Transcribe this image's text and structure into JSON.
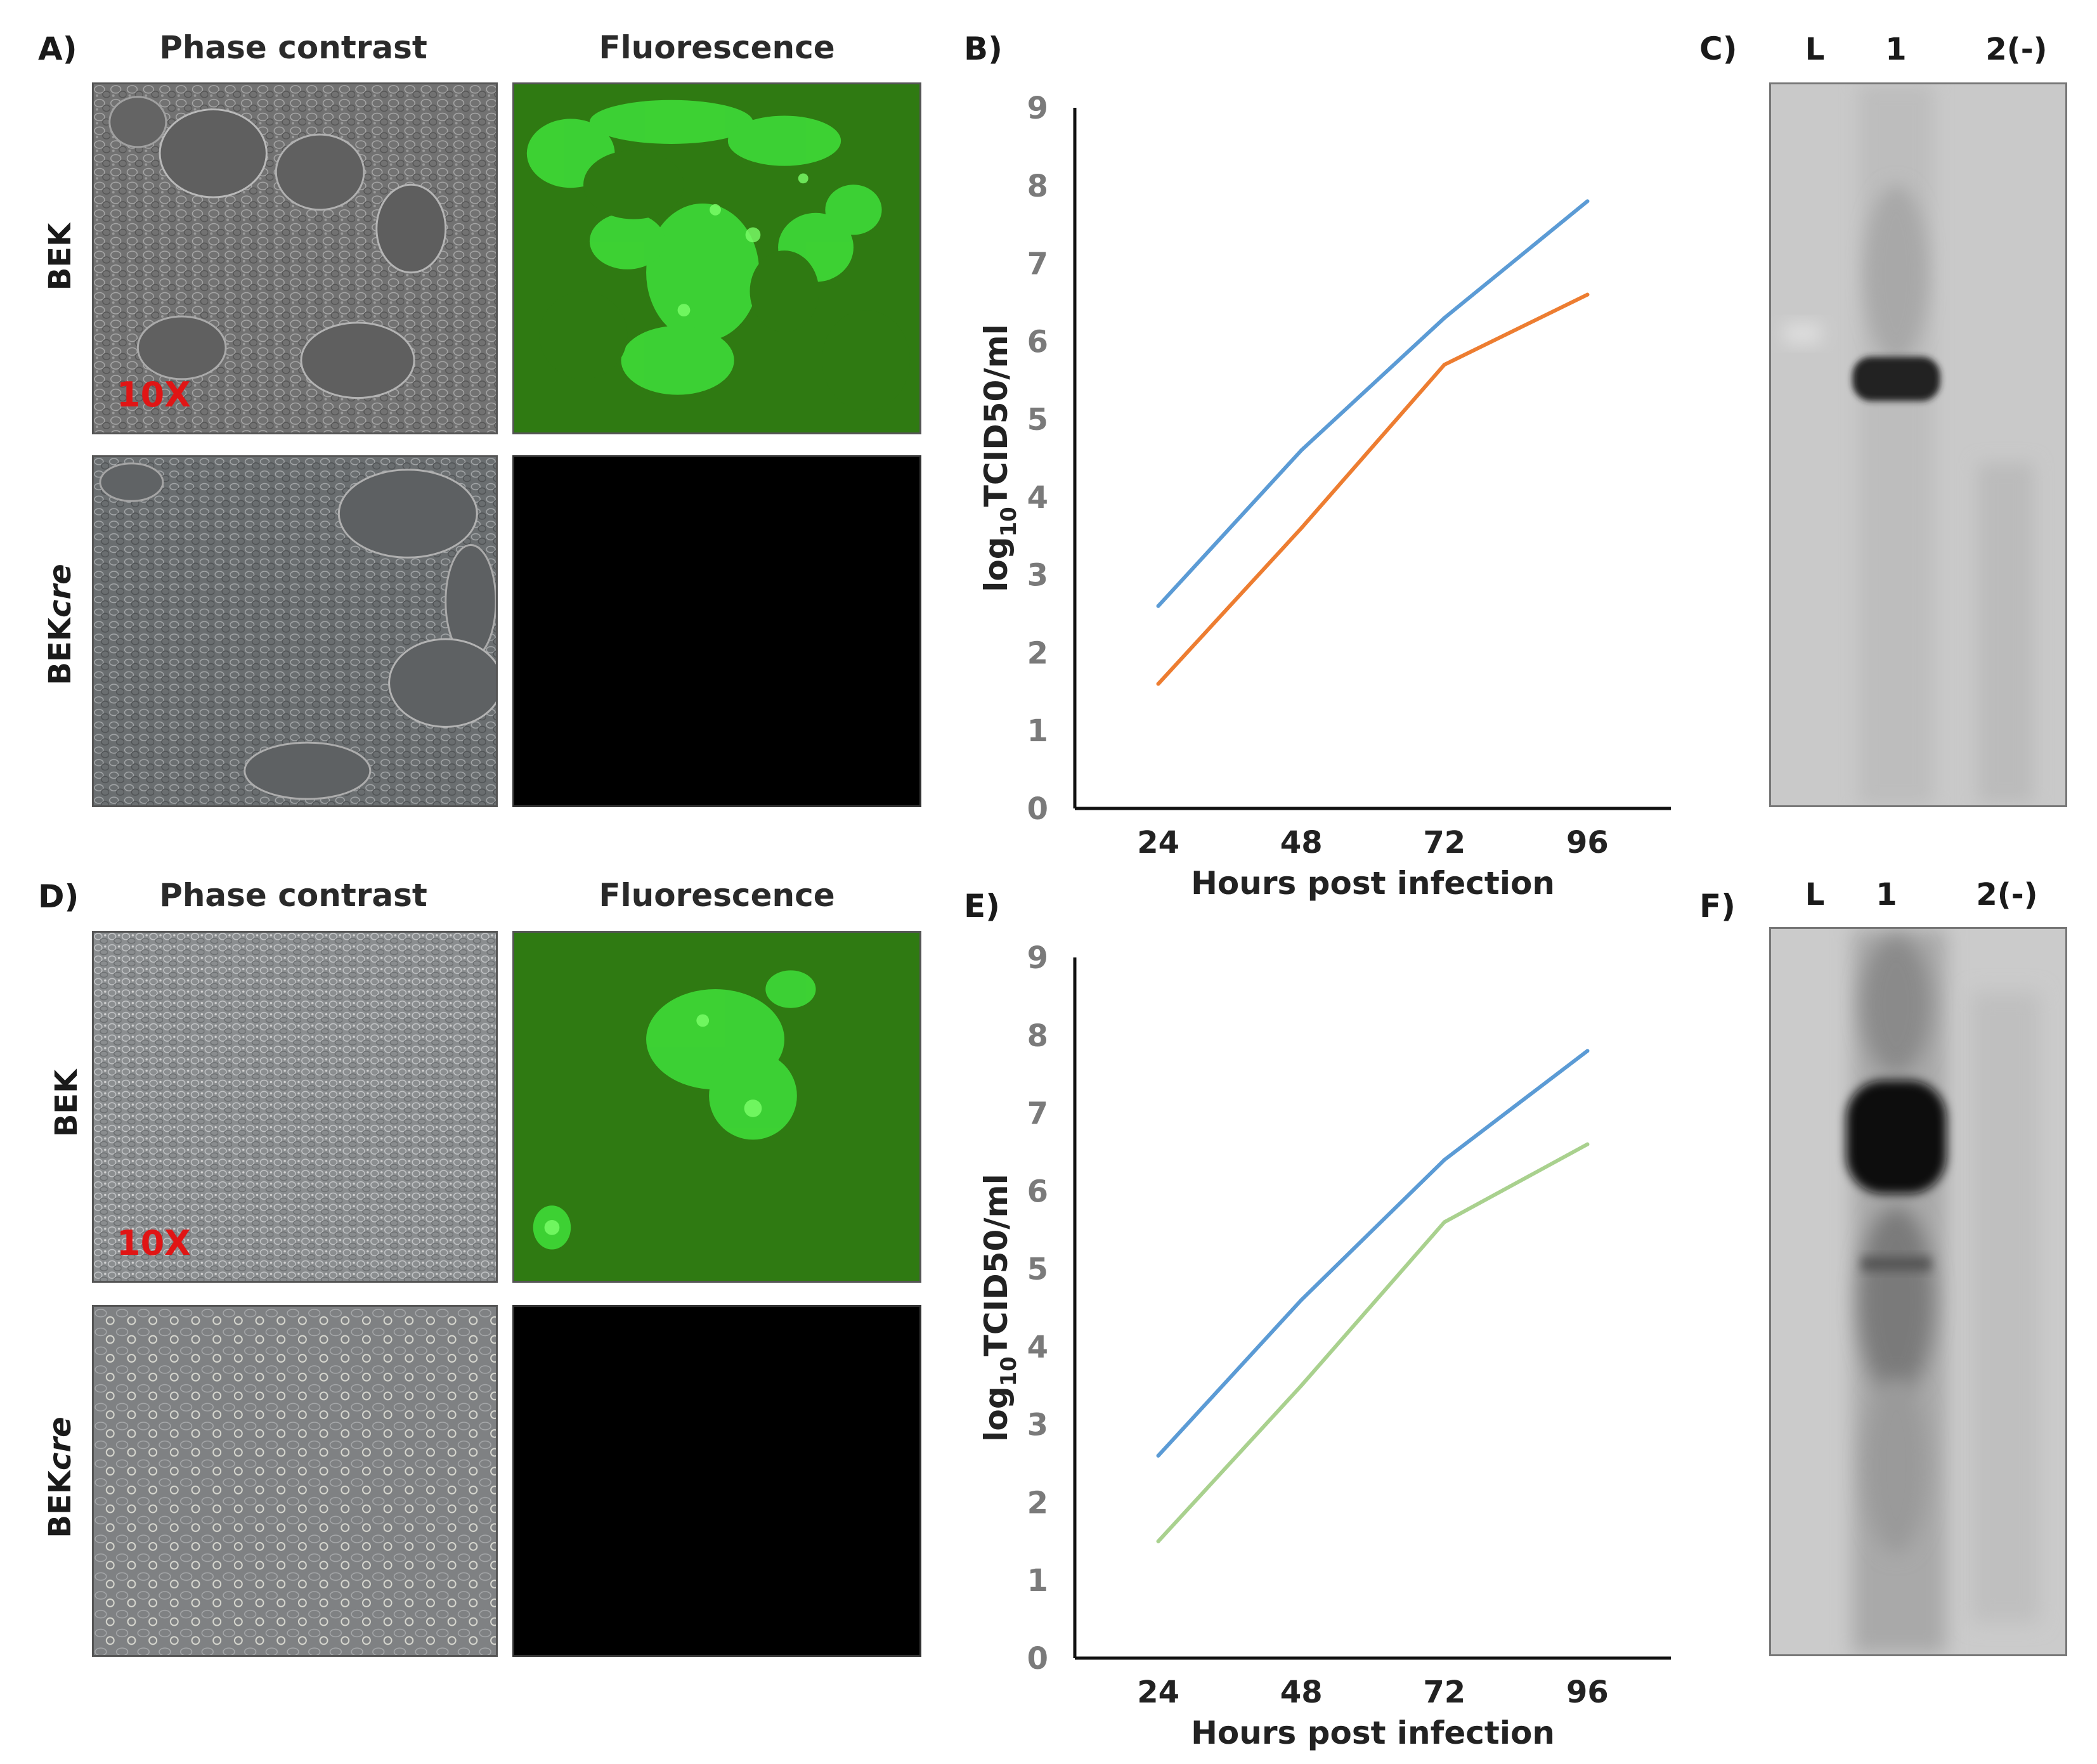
{
  "panels": {
    "A": "A)",
    "B": "B)",
    "C": "C)",
    "D": "D)",
    "E": "E)",
    "F": "F)"
  },
  "micrographs": {
    "col_phase": "Phase contrast",
    "col_fluor": "Fluorescence",
    "row_bek": "BEK",
    "row_bekcre_main": "BEK",
    "row_bekcre_italic": "cre",
    "magnification": "10X"
  },
  "colors": {
    "series_blue": "#5b9bd5",
    "series_orange": "#ed7d31",
    "series_green": "#a9d18e",
    "fluor_bg": "#2f7a12",
    "fluor_cells": "#3fe03a",
    "phase_gray": "#6f6f6f"
  },
  "chart_data": [
    {
      "type": "line",
      "panel": "B",
      "x": [
        24,
        48,
        72,
        96
      ],
      "xlabel": "Hours post infection",
      "ylabel": "log10TCID50/ml",
      "ylabel_main": "log",
      "ylabel_sub": "10",
      "ylabel_rest": "TCID50/ml",
      "ylim": [
        0,
        9
      ],
      "yticks": [
        0,
        1,
        2,
        3,
        4,
        5,
        6,
        7,
        8,
        9
      ],
      "grid": false,
      "legend": "none",
      "series": [
        {
          "values": [
            2.6,
            4.6,
            6.3,
            7.8
          ],
          "color": "#5b9bd5"
        },
        {
          "values": [
            1.6,
            3.6,
            5.7,
            6.6
          ],
          "color": "#ed7d31"
        }
      ]
    },
    {
      "type": "line",
      "panel": "E",
      "x": [
        24,
        48,
        72,
        96
      ],
      "xlabel": "Hours post infection",
      "ylabel": "log10TCID50/ml",
      "ylabel_main": "log",
      "ylabel_sub": "10",
      "ylabel_rest": "TCID50/ml",
      "ylim": [
        0,
        9
      ],
      "yticks": [
        0,
        1,
        2,
        3,
        4,
        5,
        6,
        7,
        8,
        9
      ],
      "grid": false,
      "legend": "none",
      "series": [
        {
          "values": [
            2.6,
            4.6,
            6.4,
            7.8
          ],
          "color": "#5b9bd5"
        },
        {
          "values": [
            1.5,
            3.5,
            5.6,
            6.6
          ],
          "color": "#a9d18e"
        }
      ]
    }
  ],
  "blots": {
    "lanes": [
      "L",
      "1",
      "2(-)"
    ]
  }
}
